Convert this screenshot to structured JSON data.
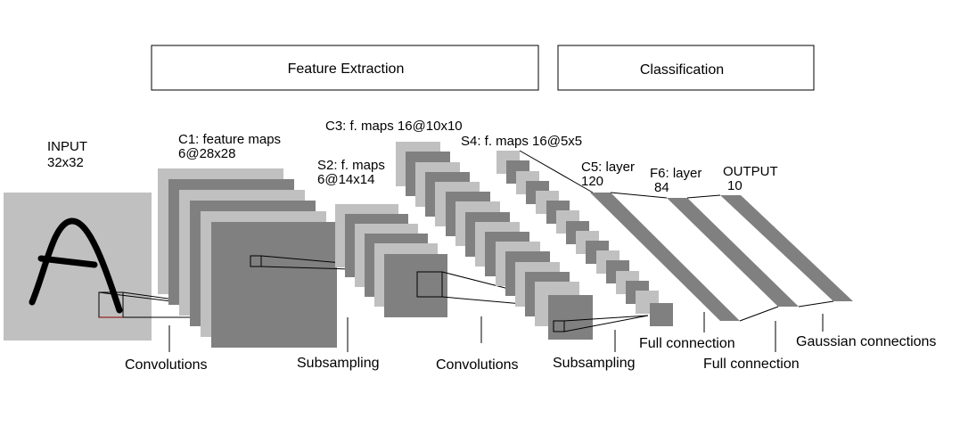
{
  "header": {
    "feature_extraction": "Feature Extraction",
    "classification": "Classification"
  },
  "layers": {
    "input": {
      "line1": "INPUT",
      "line2": "32x32"
    },
    "c1": {
      "line1": "C1: feature maps",
      "line2": "6@28x28"
    },
    "s2": {
      "line1": "S2: f. maps",
      "line2": "6@14x14"
    },
    "c3": {
      "line1": "C3: f. maps 16@10x10"
    },
    "s4": {
      "line1": "S4: f. maps 16@5x5"
    },
    "c5": {
      "line1": "C5: layer",
      "line2": "120"
    },
    "f6": {
      "line1": "F6: layer",
      "line2": "84"
    },
    "output": {
      "line1": "OUTPUT",
      "line2": "10"
    }
  },
  "operations": {
    "conv1": "Convolutions",
    "sub1": "Subsampling",
    "conv2": "Convolutions",
    "sub2": "Subsampling",
    "full1": "Full connection",
    "full2": "Full connection",
    "gaussian": "Gaussian connections"
  },
  "colors": {
    "light_gray": "#c0c0c0",
    "dark_gray": "#808080",
    "outline": "#000000",
    "receptive_line": "#8b0000"
  }
}
